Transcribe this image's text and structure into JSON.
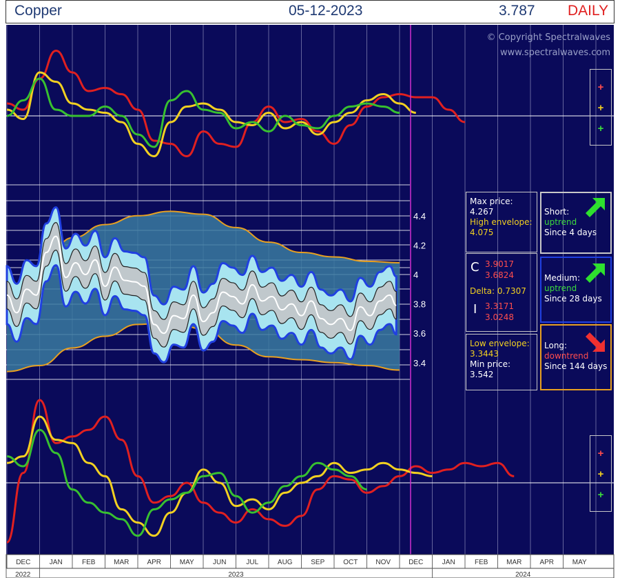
{
  "header": {
    "instrument": "Copper",
    "date": "05-12-2023",
    "price": "3.787",
    "frequency": "DAILY"
  },
  "watermark": {
    "line1": "© Copyright Spectralwaves",
    "line2": "www.spectralwaves.com"
  },
  "legend_glyphs": [
    "+",
    "+",
    "+"
  ],
  "colors": {
    "background": "#0a0a5a",
    "red": "#e02020",
    "yellow": "#f2d021",
    "green": "#38c030",
    "envelope": "#e8a020",
    "band_edge": "#2040e0"
  },
  "info": {
    "max_label": "Max price:",
    "max_value": "4.267",
    "high_env_label": "High envelope:",
    "high_env_value": "4.075",
    "c_label": "C",
    "c_val1": "3.9017",
    "c_val2": "3.6824",
    "delta": "Delta: 0.7307",
    "i_label": "I",
    "i_val1": "3.3171",
    "i_val2": "3.0248",
    "low_env_label": "Low envelope:",
    "low_env_value": "3.3443",
    "min_label": "Min price:",
    "min_value": "3.542"
  },
  "trends": [
    {
      "label": "Short:",
      "direction": "uptrend",
      "since": "Since 4 days"
    },
    {
      "label": "Medium:",
      "direction": "uptrend",
      "since": "Since 28 days"
    },
    {
      "label": "Long:",
      "direction": "downtrend",
      "since": "Since 144 days"
    }
  ],
  "chart_data": {
    "type": "line",
    "title": "Copper",
    "y_ticks": [
      "4.4",
      "4.2",
      "4",
      "3.8",
      "3.6",
      "3.4"
    ],
    "ylim": [
      3.3,
      4.55
    ],
    "months": [
      "DEC",
      "JAN",
      "FEB",
      "MAR",
      "APR",
      "MAY",
      "JUN",
      "JUL",
      "AUG",
      "SEP",
      "OCT",
      "NOV",
      "DEC",
      "JAN",
      "FEB",
      "MAR",
      "APR",
      "MAY"
    ],
    "years": [
      "2022",
      "2023",
      "2024"
    ],
    "price_series": {
      "name": "price",
      "x_months": [
        0,
        0.3,
        0.6,
        0.9,
        1.2,
        1.5,
        1.8,
        2.1,
        2.4,
        2.7,
        3.0,
        3.3,
        3.6,
        3.9,
        4.2,
        4.5,
        4.8,
        5.1,
        5.4,
        5.7,
        6.0,
        6.3,
        6.6,
        6.9,
        7.2,
        7.5,
        7.8,
        8.1,
        8.4,
        8.7,
        9.0,
        9.3,
        9.6,
        9.9,
        10.2,
        10.5,
        10.8,
        11.1,
        11.4,
        11.7,
        11.9
      ],
      "values": [
        3.86,
        3.74,
        3.9,
        3.86,
        4.15,
        4.26,
        3.98,
        4.08,
        4.0,
        4.1,
        3.92,
        4.05,
        3.96,
        3.95,
        3.92,
        3.66,
        3.6,
        3.72,
        3.7,
        3.86,
        3.68,
        3.74,
        3.88,
        3.85,
        3.8,
        3.93,
        3.82,
        3.85,
        3.76,
        3.8,
        3.72,
        3.82,
        3.7,
        3.66,
        3.7,
        3.62,
        3.78,
        3.72,
        3.82,
        3.86,
        3.79
      ]
    },
    "envelope": {
      "x_months": [
        0,
        1,
        2,
        3,
        4,
        5,
        6,
        7,
        8,
        9,
        10,
        11,
        12
      ],
      "high": [
        3.86,
        4.02,
        4.25,
        4.34,
        4.4,
        4.43,
        4.41,
        4.32,
        4.22,
        4.15,
        4.12,
        4.09,
        4.08
      ],
      "low": [
        3.34,
        3.38,
        3.5,
        3.58,
        3.66,
        3.68,
        3.63,
        3.52,
        3.44,
        3.42,
        3.4,
        3.38,
        3.35
      ]
    },
    "oscillators": {
      "x_months": [
        0,
        0.5,
        1,
        1.5,
        2,
        2.5,
        3,
        3.5,
        4,
        4.5,
        5,
        5.5,
        6,
        6.5,
        7,
        7.5,
        8,
        8.5,
        9,
        9.5,
        10,
        10.5,
        11,
        11.5,
        12,
        12.5,
        13,
        13.5,
        14,
        14.5,
        15,
        15.5,
        16,
        16.5,
        17,
        17.5
      ],
      "upper_red": [
        0.4,
        0.2,
        1.2,
        2.1,
        1.4,
        0.8,
        0.9,
        0.7,
        0.2,
        -0.8,
        -0.9,
        -1.3,
        -0.5,
        -0.9,
        -1.0,
        -0.2,
        0.3,
        -0.2,
        -0.1,
        -0.5,
        -0.9,
        -0.3,
        0.3,
        0.6,
        0.7,
        0.6,
        0.6,
        0.2,
        -0.2,
        null,
        null,
        null,
        null,
        null,
        null,
        null
      ],
      "upper_yellow": [
        0.2,
        -0.1,
        1.4,
        1.1,
        0.4,
        0.2,
        0.1,
        -0.2,
        -0.9,
        -1.3,
        -0.2,
        0.3,
        0.4,
        0.2,
        -0.2,
        -0.3,
        0.1,
        -0.4,
        -0.2,
        -0.6,
        -0.2,
        0.1,
        0.5,
        0.7,
        0.4,
        0.1,
        null,
        null,
        null,
        null,
        null,
        null,
        null,
        null,
        null,
        null
      ],
      "upper_green": [
        0.0,
        0.5,
        1.2,
        0.2,
        0.0,
        0.0,
        0.3,
        0.0,
        -0.6,
        -1.0,
        0.5,
        0.8,
        0.2,
        0.1,
        -0.4,
        -0.2,
        -0.5,
        0.0,
        -0.3,
        -0.4,
        0.0,
        0.3,
        0.4,
        0.3,
        0.1,
        null,
        null,
        null,
        null,
        null,
        null,
        null,
        null,
        null,
        null,
        null
      ],
      "lower_red": [
        -1.8,
        0.3,
        2.5,
        1.2,
        1.4,
        1.6,
        2.0,
        1.3,
        0.2,
        -0.6,
        -0.4,
        0.0,
        -0.6,
        -0.9,
        -1.2,
        -0.8,
        -1.1,
        -1.3,
        -1.0,
        -0.2,
        0.2,
        0.1,
        -0.3,
        -0.1,
        0.2,
        0.5,
        0.3,
        0.4,
        0.6,
        0.5,
        0.6,
        0.2,
        null,
        null,
        null,
        null
      ],
      "lower_yellow": [
        0.6,
        0.8,
        2.0,
        1.3,
        1.2,
        0.6,
        0.2,
        -0.8,
        -1.2,
        -1.6,
        -0.9,
        -0.3,
        0.4,
        0.0,
        -0.7,
        -0.5,
        -0.8,
        -0.3,
        0.0,
        0.2,
        0.6,
        0.3,
        0.4,
        0.6,
        0.4,
        0.3,
        0.2,
        null,
        null,
        null,
        null,
        null,
        null,
        null,
        null,
        null
      ],
      "lower_green": [
        0.8,
        0.5,
        1.6,
        0.9,
        -0.2,
        -0.6,
        -0.9,
        -1.1,
        -1.6,
        -0.8,
        -0.5,
        -0.3,
        0.2,
        0.3,
        -0.4,
        -0.9,
        -0.6,
        -0.1,
        0.2,
        0.6,
        0.4,
        0.2,
        -0.2,
        null,
        null,
        null,
        null,
        null,
        null,
        null,
        null,
        null,
        null,
        null,
        null,
        null
      ]
    }
  }
}
